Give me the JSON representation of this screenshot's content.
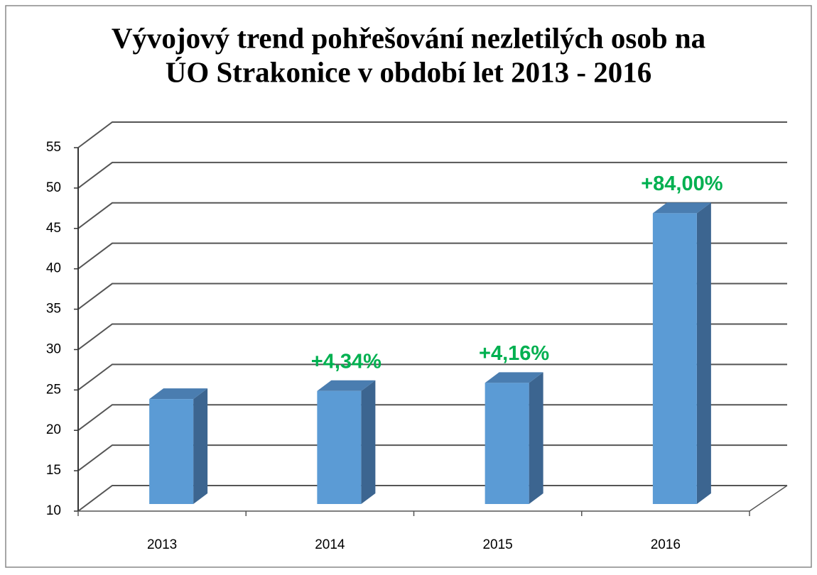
{
  "chart_data": {
    "type": "bar3d",
    "title": "Vývojový trend pohřešování nezletilých osob na",
    "subtitle": "ÚO Strakonice v období let 2013 - 2016",
    "categories": [
      "2013",
      "2014",
      "2015",
      "2016"
    ],
    "values": [
      23,
      24,
      25,
      46
    ],
    "annotations": [
      null,
      "+4,34%",
      "+4,16%",
      "+84,00%"
    ],
    "color": "#5b9bd5",
    "annotation_color": "#00b050",
    "ylim": [
      10,
      55
    ],
    "yticks": [
      10,
      15,
      20,
      25,
      30,
      35,
      40,
      45,
      50,
      55
    ],
    "grid": true
  }
}
